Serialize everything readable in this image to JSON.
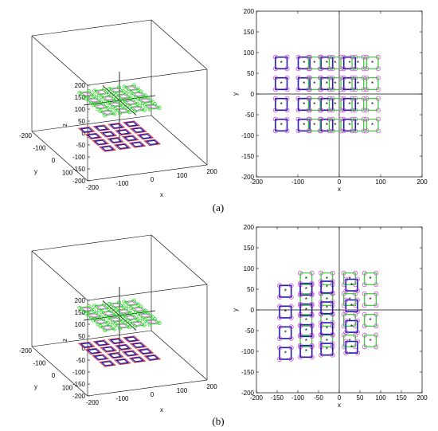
{
  "figure": {
    "panels": [
      {
        "label": "(a)"
      },
      {
        "label": "(b)"
      }
    ]
  },
  "colors": {
    "blue": "#1a1ab0",
    "green": "#22d322",
    "magenta": "#d040d0",
    "red": "#e03030",
    "black": "#000000"
  },
  "chart_data": [
    {
      "type": "scatter",
      "panel": "(a)",
      "view": "3d",
      "title": "",
      "xlabel": "x",
      "ylabel": "y",
      "zlabel": "z",
      "xlim": [
        -200,
        200
      ],
      "ylim": [
        -200,
        200
      ],
      "zlim": [
        -200,
        200
      ],
      "x_ticks": [
        "-200",
        "-100",
        "0",
        "100",
        "200"
      ],
      "y_ticks": [
        "-200",
        "-100",
        "0",
        "100"
      ],
      "z_ticks": [
        "-200",
        "-150",
        "-100",
        "-50",
        "0",
        "50",
        "100",
        "150",
        "200"
      ],
      "grid": false,
      "upper_plane_z": 0,
      "lower_plane_z": -150
    },
    {
      "type": "scatter",
      "panel": "(a)",
      "view": "2d",
      "title": "",
      "xlabel": "x",
      "ylabel": "y",
      "xlim": [
        -200,
        200
      ],
      "ylim": [
        -200,
        200
      ],
      "x_ticks": [
        "-200",
        "-100",
        "0",
        "100",
        "200"
      ],
      "y_ticks": [
        "-200",
        "-150",
        "-100",
        "-50",
        "0",
        "50",
        "100",
        "150",
        "200"
      ],
      "grid": false,
      "centers_x": [
        -140,
        -85,
        -30,
        25,
        80
      ],
      "centers_y": [
        75,
        25,
        -25,
        -75
      ],
      "half_size": 14,
      "series": [
        {
          "key": "blue",
          "squares": [
            [
              -140,
              75
            ],
            [
              -140,
              25
            ],
            [
              -140,
              -25
            ],
            [
              -140,
              -75
            ],
            [
              -85,
              75
            ],
            [
              -85,
              25
            ],
            [
              -85,
              -25
            ],
            [
              -85,
              -75
            ],
            [
              -30,
              75
            ],
            [
              -30,
              25
            ],
            [
              -30,
              -25
            ],
            [
              -30,
              -75
            ],
            [
              25,
              75
            ],
            [
              25,
              25
            ],
            [
              25,
              -25
            ],
            [
              25,
              -75
            ]
          ]
        },
        {
          "key": "green",
          "squares": [
            [
              -60,
              75
            ],
            [
              -60,
              25
            ],
            [
              -60,
              -25
            ],
            [
              -60,
              -75
            ],
            [
              -10,
              75
            ],
            [
              -10,
              25
            ],
            [
              -10,
              -25
            ],
            [
              -10,
              -75
            ],
            [
              45,
              75
            ],
            [
              45,
              25
            ],
            [
              45,
              -25
            ],
            [
              45,
              -75
            ],
            [
              80,
              75
            ],
            [
              80,
              25
            ],
            [
              80,
              -25
            ],
            [
              80,
              -75
            ]
          ]
        }
      ]
    },
    {
      "type": "scatter",
      "panel": "(b)",
      "view": "3d",
      "title": "",
      "xlabel": "x",
      "ylabel": "y",
      "zlabel": "z",
      "xlim": [
        -200,
        200
      ],
      "ylim": [
        -200,
        200
      ],
      "zlim": [
        -200,
        200
      ],
      "x_ticks": [
        "-200",
        "-100",
        "0",
        "100",
        "200"
      ],
      "y_ticks": [
        "-200",
        "-100",
        "0",
        "100"
      ],
      "z_ticks": [
        "-200",
        "-150",
        "-100",
        "-50",
        "0",
        "50",
        "100",
        "150",
        "200"
      ],
      "grid": false,
      "upper_plane_z": 0,
      "lower_plane_z": -150
    },
    {
      "type": "scatter",
      "panel": "(b)",
      "view": "2d",
      "title": "",
      "xlabel": "x",
      "ylabel": "y",
      "xlim": [
        -200,
        200
      ],
      "ylim": [
        -200,
        200
      ],
      "x_ticks": [
        "-200",
        "-150",
        "-100",
        "-50",
        "0",
        "50",
        "100",
        "150",
        "200"
      ],
      "y_ticks": [
        "-200",
        "-150",
        "-100",
        "-50",
        "0",
        "50",
        "100",
        "150",
        "200"
      ],
      "grid": false,
      "half_size": 14,
      "series": [
        {
          "key": "green",
          "squares": [
            [
              -80,
              75
            ],
            [
              -30,
              75
            ],
            [
              25,
              75
            ],
            [
              75,
              75
            ],
            [
              75,
              25
            ],
            [
              75,
              -25
            ],
            [
              75,
              -75
            ],
            [
              -80,
              25
            ],
            [
              -30,
              25
            ],
            [
              25,
              25
            ],
            [
              -80,
              -25
            ],
            [
              -30,
              -25
            ],
            [
              25,
              -25
            ],
            [
              -80,
              -75
            ],
            [
              -30,
              -75
            ],
            [
              25,
              -75
            ]
          ]
        },
        {
          "key": "blue",
          "squares": [
            [
              -130,
              45
            ],
            [
              -130,
              -5
            ],
            [
              -130,
              -55
            ],
            [
              -130,
              -105
            ],
            [
              -80,
              50
            ],
            [
              -80,
              0
            ],
            [
              -80,
              -50
            ],
            [
              -80,
              -100
            ],
            [
              -30,
              55
            ],
            [
              -30,
              5
            ],
            [
              -30,
              -45
            ],
            [
              -30,
              -95
            ],
            [
              30,
              60
            ],
            [
              30,
              10
            ],
            [
              30,
              -40
            ],
            [
              30,
              -90
            ]
          ]
        }
      ]
    }
  ]
}
